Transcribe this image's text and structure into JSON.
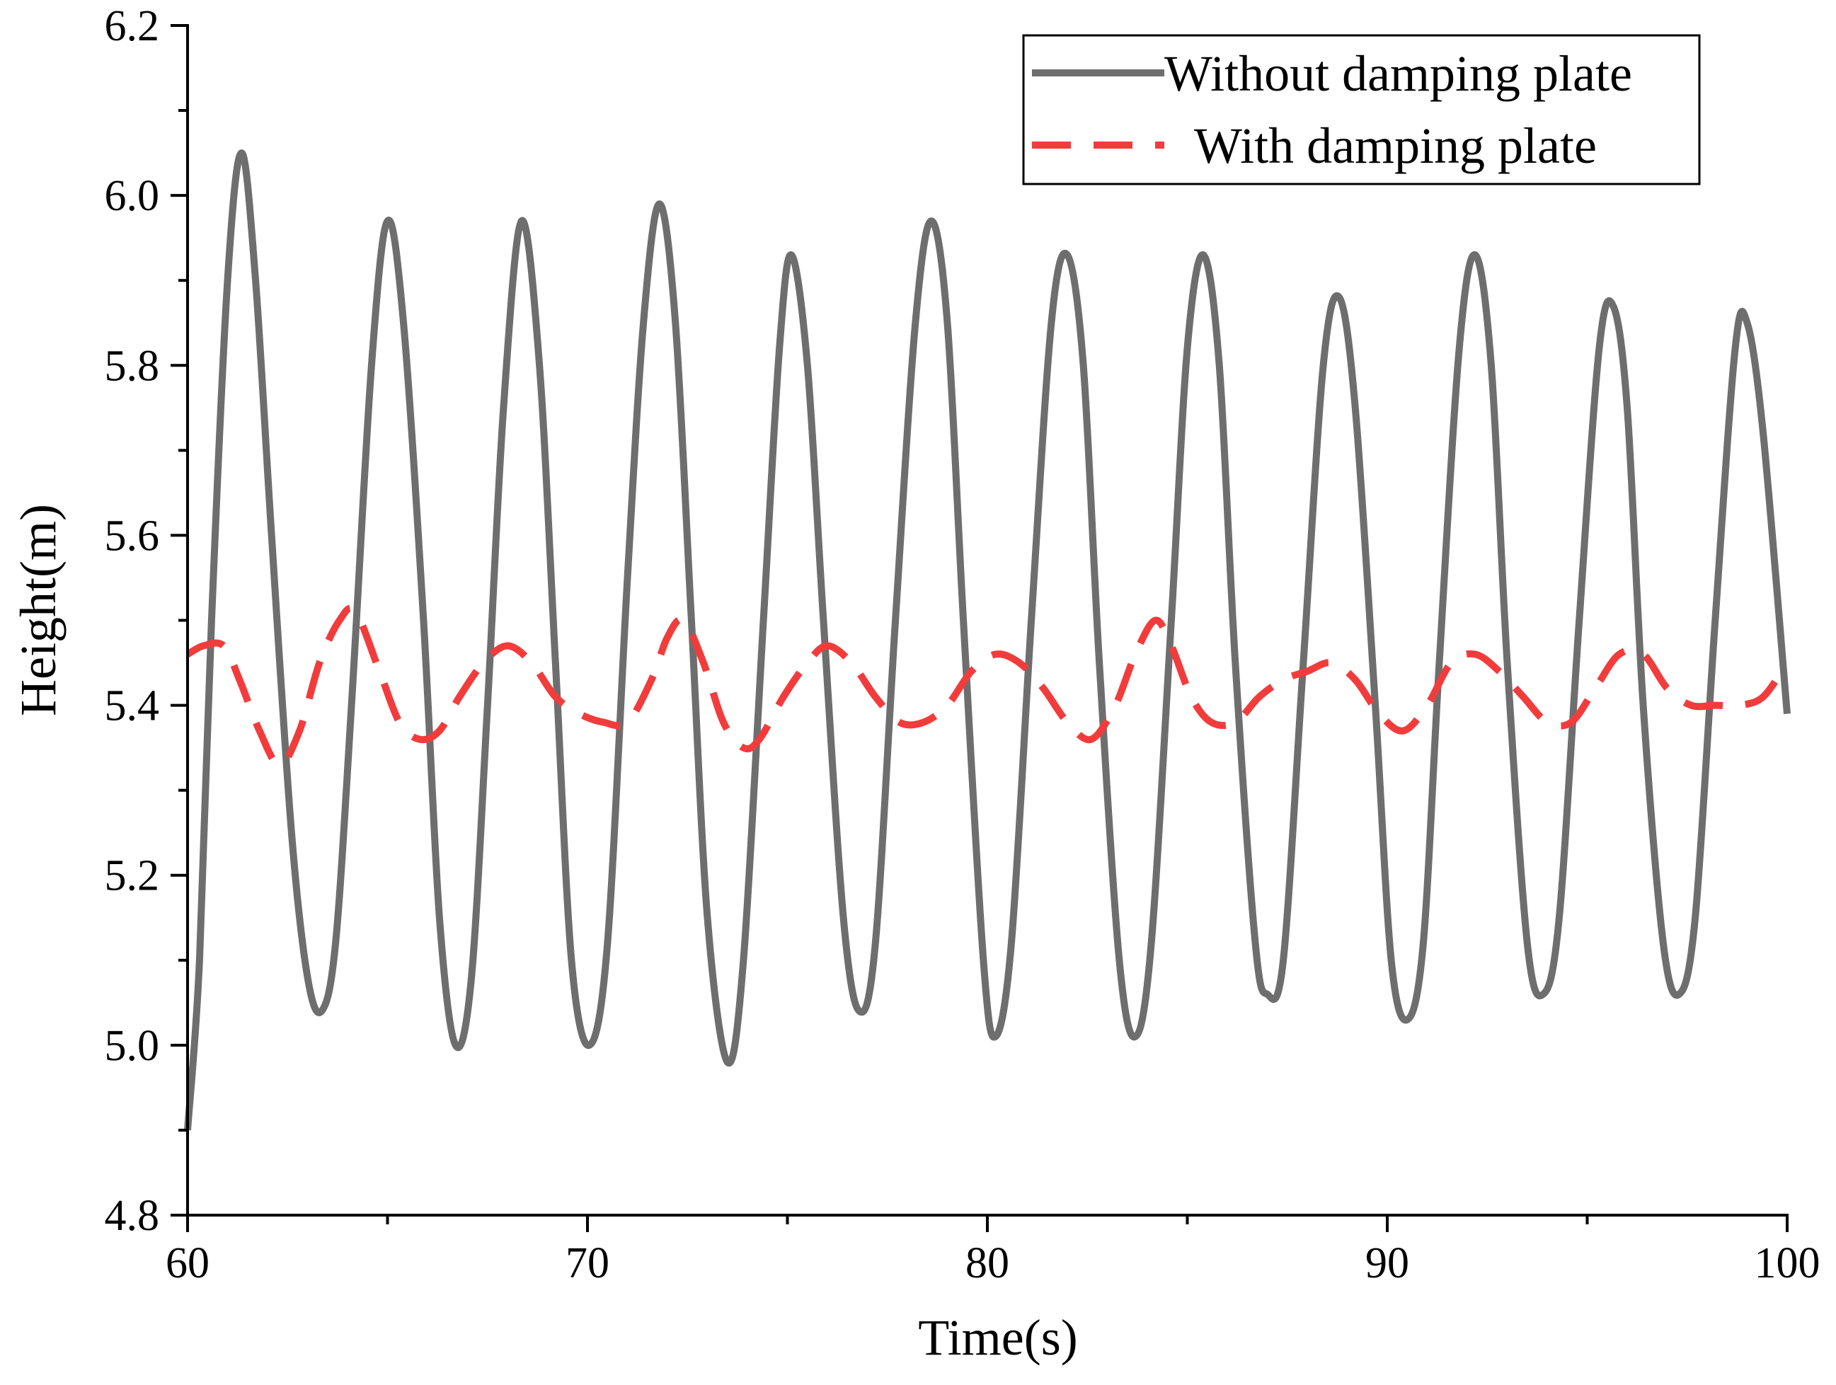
{
  "chart_data": {
    "type": "line",
    "title": "",
    "xlabel": "Time(s)",
    "ylabel": "Height(m)",
    "xlim": [
      60,
      100
    ],
    "ylim": [
      4.8,
      6.2
    ],
    "x_ticks": [
      60,
      70,
      80,
      90,
      100
    ],
    "x_tick_labels": [
      "60",
      "70",
      "80",
      "90",
      "100"
    ],
    "y_ticks": [
      4.8,
      5.0,
      5.2,
      5.4,
      5.6,
      5.8,
      6.0,
      6.2
    ],
    "y_tick_labels": [
      "4.8",
      "5.0",
      "5.2",
      "5.4",
      "5.6",
      "5.8",
      "6.0",
      "6.2"
    ],
    "grid": false,
    "legend_position": "top-right",
    "series": [
      {
        "name": "Without damping plate",
        "color": "#6e6e6e",
        "style": "solid",
        "points": [
          [
            60.0,
            4.9
          ],
          [
            60.3,
            5.1
          ],
          [
            60.6,
            5.5
          ],
          [
            61.0,
            5.9
          ],
          [
            61.35,
            6.05
          ],
          [
            61.7,
            5.9
          ],
          [
            62.1,
            5.6
          ],
          [
            62.6,
            5.25
          ],
          [
            63.0,
            5.08
          ],
          [
            63.35,
            5.04
          ],
          [
            63.7,
            5.12
          ],
          [
            64.1,
            5.4
          ],
          [
            64.6,
            5.8
          ],
          [
            65.0,
            5.97
          ],
          [
            65.4,
            5.85
          ],
          [
            65.9,
            5.5
          ],
          [
            66.3,
            5.15
          ],
          [
            66.7,
            5.0
          ],
          [
            67.1,
            5.08
          ],
          [
            67.5,
            5.4
          ],
          [
            67.9,
            5.75
          ],
          [
            68.35,
            5.97
          ],
          [
            68.8,
            5.8
          ],
          [
            69.2,
            5.45
          ],
          [
            69.6,
            5.1
          ],
          [
            70.05,
            5.0
          ],
          [
            70.5,
            5.12
          ],
          [
            71.0,
            5.55
          ],
          [
            71.4,
            5.85
          ],
          [
            71.8,
            5.99
          ],
          [
            72.2,
            5.85
          ],
          [
            72.6,
            5.5
          ],
          [
            73.0,
            5.15
          ],
          [
            73.5,
            4.98
          ],
          [
            73.9,
            5.1
          ],
          [
            74.4,
            5.5
          ],
          [
            74.8,
            5.82
          ],
          [
            75.1,
            5.93
          ],
          [
            75.5,
            5.8
          ],
          [
            75.9,
            5.5
          ],
          [
            76.4,
            5.15
          ],
          [
            76.8,
            5.04
          ],
          [
            77.2,
            5.12
          ],
          [
            77.7,
            5.5
          ],
          [
            78.2,
            5.85
          ],
          [
            78.6,
            5.97
          ],
          [
            79.0,
            5.85
          ],
          [
            79.4,
            5.5
          ],
          [
            79.9,
            5.1
          ],
          [
            80.2,
            5.01
          ],
          [
            80.6,
            5.12
          ],
          [
            81.1,
            5.5
          ],
          [
            81.6,
            5.85
          ],
          [
            82.0,
            5.93
          ],
          [
            82.4,
            5.8
          ],
          [
            82.8,
            5.45
          ],
          [
            83.3,
            5.1
          ],
          [
            83.7,
            5.01
          ],
          [
            84.1,
            5.12
          ],
          [
            84.6,
            5.5
          ],
          [
            85.0,
            5.82
          ],
          [
            85.4,
            5.93
          ],
          [
            85.8,
            5.8
          ],
          [
            86.2,
            5.45
          ],
          [
            86.7,
            5.12
          ],
          [
            87.0,
            5.06
          ],
          [
            87.4,
            5.1
          ],
          [
            87.9,
            5.45
          ],
          [
            88.4,
            5.8
          ],
          [
            88.8,
            5.88
          ],
          [
            89.2,
            5.75
          ],
          [
            89.7,
            5.4
          ],
          [
            90.1,
            5.1
          ],
          [
            90.5,
            5.03
          ],
          [
            90.9,
            5.12
          ],
          [
            91.3,
            5.45
          ],
          [
            91.8,
            5.82
          ],
          [
            92.2,
            5.93
          ],
          [
            92.6,
            5.8
          ],
          [
            93.0,
            5.45
          ],
          [
            93.5,
            5.12
          ],
          [
            93.9,
            5.06
          ],
          [
            94.3,
            5.15
          ],
          [
            94.8,
            5.5
          ],
          [
            95.3,
            5.82
          ],
          [
            95.65,
            5.87
          ],
          [
            96.0,
            5.75
          ],
          [
            96.4,
            5.4
          ],
          [
            96.9,
            5.12
          ],
          [
            97.3,
            5.06
          ],
          [
            97.7,
            5.15
          ],
          [
            98.2,
            5.5
          ],
          [
            98.7,
            5.82
          ],
          [
            99.0,
            5.85
          ],
          [
            99.4,
            5.72
          ],
          [
            100.0,
            5.39
          ]
        ]
      },
      {
        "name": "With damping plate",
        "color": "#f23c3c",
        "style": "dashed",
        "points": [
          [
            60.0,
            5.46
          ],
          [
            60.4,
            5.47
          ],
          [
            60.9,
            5.47
          ],
          [
            61.3,
            5.43
          ],
          [
            61.8,
            5.37
          ],
          [
            62.3,
            5.33
          ],
          [
            62.8,
            5.37
          ],
          [
            63.3,
            5.45
          ],
          [
            63.8,
            5.5
          ],
          [
            64.2,
            5.51
          ],
          [
            64.8,
            5.44
          ],
          [
            65.3,
            5.38
          ],
          [
            65.8,
            5.36
          ],
          [
            66.3,
            5.37
          ],
          [
            66.8,
            5.41
          ],
          [
            67.4,
            5.45
          ],
          [
            68.0,
            5.47
          ],
          [
            68.6,
            5.45
          ],
          [
            69.2,
            5.41
          ],
          [
            69.8,
            5.39
          ],
          [
            70.4,
            5.38
          ],
          [
            71.0,
            5.38
          ],
          [
            71.6,
            5.43
          ],
          [
            72.0,
            5.48
          ],
          [
            72.4,
            5.5
          ],
          [
            72.9,
            5.45
          ],
          [
            73.4,
            5.38
          ],
          [
            73.9,
            5.35
          ],
          [
            74.3,
            5.36
          ],
          [
            74.9,
            5.41
          ],
          [
            75.5,
            5.45
          ],
          [
            76.0,
            5.47
          ],
          [
            76.6,
            5.45
          ],
          [
            77.2,
            5.41
          ],
          [
            77.8,
            5.38
          ],
          [
            78.4,
            5.38
          ],
          [
            79.0,
            5.4
          ],
          [
            79.6,
            5.44
          ],
          [
            80.2,
            5.46
          ],
          [
            80.8,
            5.45
          ],
          [
            81.4,
            5.42
          ],
          [
            82.0,
            5.38
          ],
          [
            82.6,
            5.36
          ],
          [
            83.2,
            5.4
          ],
          [
            83.7,
            5.46
          ],
          [
            84.2,
            5.5
          ],
          [
            84.6,
            5.47
          ],
          [
            85.1,
            5.41
          ],
          [
            85.6,
            5.38
          ],
          [
            86.2,
            5.38
          ],
          [
            86.8,
            5.41
          ],
          [
            87.4,
            5.43
          ],
          [
            88.0,
            5.44
          ],
          [
            88.6,
            5.45
          ],
          [
            89.2,
            5.43
          ],
          [
            89.8,
            5.39
          ],
          [
            90.4,
            5.37
          ],
          [
            91.0,
            5.4
          ],
          [
            91.6,
            5.45
          ],
          [
            92.2,
            5.46
          ],
          [
            92.8,
            5.44
          ],
          [
            93.4,
            5.41
          ],
          [
            94.0,
            5.38
          ],
          [
            94.6,
            5.38
          ],
          [
            95.2,
            5.42
          ],
          [
            95.8,
            5.46
          ],
          [
            96.4,
            5.46
          ],
          [
            97.0,
            5.42
          ],
          [
            97.6,
            5.4
          ],
          [
            98.2,
            5.4
          ],
          [
            98.8,
            5.4
          ],
          [
            99.4,
            5.41
          ],
          [
            100.0,
            5.45
          ]
        ]
      }
    ]
  }
}
